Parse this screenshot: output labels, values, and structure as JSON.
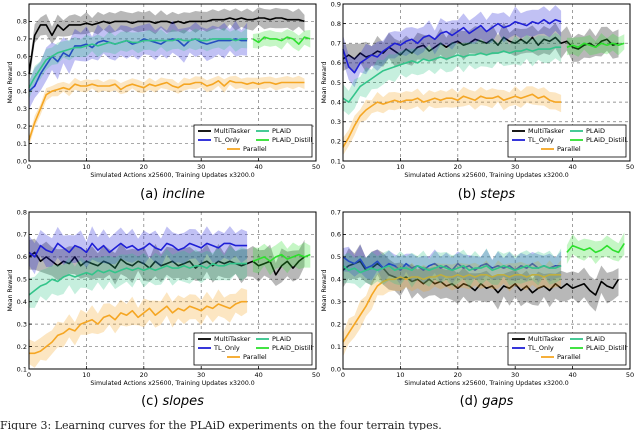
{
  "figure_caption": "Figure 3: Learning curves for the PLAiD experiments on the four terrain types.",
  "chart_data": [
    {
      "type": "line",
      "title": "",
      "caption_label": "(a)",
      "caption_name": "incline",
      "xlabel": "Simulated Actions x25600, Training Updates x3200.0",
      "ylabel": "Mean Reward",
      "xlim": [
        0,
        50
      ],
      "ylim": [
        0.0,
        0.9
      ],
      "xticks": [
        0,
        10,
        20,
        30,
        40,
        50
      ],
      "yticks": [
        0.0,
        0.1,
        0.2,
        0.3,
        0.4,
        0.5,
        0.6,
        0.7,
        0.8
      ],
      "grid": true,
      "legend_position": "bottom-right",
      "series": [
        {
          "name": "MultiTasker",
          "color": "#000000",
          "x_start": 0,
          "x_step": 1,
          "values": [
            0.5,
            0.72,
            0.78,
            0.78,
            0.72,
            0.78,
            0.75,
            0.78,
            0.78,
            0.78,
            0.79,
            0.78,
            0.79,
            0.8,
            0.79,
            0.8,
            0.8,
            0.8,
            0.79,
            0.8,
            0.8,
            0.8,
            0.79,
            0.8,
            0.8,
            0.79,
            0.8,
            0.79,
            0.8,
            0.8,
            0.8,
            0.8,
            0.81,
            0.81,
            0.81,
            0.82,
            0.81,
            0.82,
            0.81,
            0.81,
            0.82,
            0.82,
            0.81,
            0.82,
            0.82,
            0.81,
            0.81,
            0.81,
            0.8
          ],
          "spread": 0.05
        },
        {
          "name": "TL_Only",
          "color": "#1f1fd6",
          "x_start": 0,
          "x_step": 1,
          "values": [
            0.4,
            0.43,
            0.5,
            0.55,
            0.6,
            0.57,
            0.62,
            0.6,
            0.66,
            0.66,
            0.67,
            0.65,
            0.68,
            0.69,
            0.68,
            0.67,
            0.68,
            0.69,
            0.67,
            0.68,
            0.7,
            0.69,
            0.68,
            0.67,
            0.69,
            0.7,
            0.69,
            0.66,
            0.69,
            0.7,
            0.68,
            0.67,
            0.68,
            0.69,
            0.69,
            0.69,
            0.7,
            0.69,
            0.69
          ],
          "spread": 0.08
        },
        {
          "name": "Parallel",
          "color": "#f5a623",
          "x_start": 0,
          "x_step": 1,
          "values": [
            0.12,
            0.22,
            0.3,
            0.38,
            0.4,
            0.41,
            0.42,
            0.41,
            0.44,
            0.43,
            0.43,
            0.44,
            0.43,
            0.43,
            0.43,
            0.44,
            0.41,
            0.43,
            0.44,
            0.43,
            0.42,
            0.44,
            0.43,
            0.44,
            0.45,
            0.43,
            0.42,
            0.44,
            0.44,
            0.45,
            0.45,
            0.43,
            0.44,
            0.46,
            0.43,
            0.46,
            0.45,
            0.45,
            0.44,
            0.45,
            0.44,
            0.45,
            0.45,
            0.44,
            0.45,
            0.45,
            0.45,
            0.45,
            0.45
          ],
          "spread": 0.03
        },
        {
          "name": "PLAiD",
          "color": "#33c48a",
          "x_start": 0,
          "x_step": 1,
          "values": [
            0.42,
            0.48,
            0.53,
            0.58,
            0.6,
            0.62,
            0.63,
            0.64,
            0.65,
            0.65,
            0.66,
            0.67,
            0.66,
            0.67,
            0.68,
            0.67,
            0.68,
            0.69,
            0.68,
            0.68,
            0.69,
            0.69,
            0.69,
            0.69,
            0.69,
            0.69,
            0.7,
            0.69,
            0.69,
            0.7,
            0.69,
            0.69,
            0.7,
            0.7,
            0.7,
            0.7,
            0.69,
            0.7,
            0.7
          ],
          "spread": 0.05
        },
        {
          "name": "PLAiD_Distill",
          "color": "#2ee02e",
          "x_start": 39,
          "x_step": 1,
          "values": [
            0.7,
            0.68,
            0.71,
            0.7,
            0.7,
            0.69,
            0.71,
            0.7,
            0.67,
            0.71,
            0.7
          ],
          "spread": 0.04
        }
      ]
    },
    {
      "type": "line",
      "title": "",
      "caption_label": "(b)",
      "caption_name": "steps",
      "xlabel": "Simulated Actions x25600, Training Updates x3200.0",
      "ylabel": "Mean Reward",
      "xlim": [
        0,
        50
      ],
      "ylim": [
        0.1,
        0.9
      ],
      "xticks": [
        0,
        10,
        20,
        30,
        40,
        50
      ],
      "yticks": [
        0.1,
        0.2,
        0.3,
        0.4,
        0.5,
        0.6,
        0.7,
        0.8,
        0.9
      ],
      "grid": true,
      "legend_position": "bottom-right",
      "series": [
        {
          "name": "MultiTasker",
          "color": "#000000",
          "x_start": 0,
          "x_step": 1,
          "values": [
            0.62,
            0.64,
            0.62,
            0.65,
            0.63,
            0.64,
            0.66,
            0.65,
            0.68,
            0.66,
            0.64,
            0.67,
            0.65,
            0.68,
            0.69,
            0.66,
            0.68,
            0.7,
            0.68,
            0.7,
            0.71,
            0.69,
            0.7,
            0.72,
            0.71,
            0.7,
            0.72,
            0.69,
            0.73,
            0.71,
            0.7,
            0.72,
            0.7,
            0.73,
            0.69,
            0.72,
            0.71,
            0.73,
            0.7,
            0.71,
            0.68,
            0.67,
            0.69,
            0.7,
            0.68,
            0.71,
            0.72,
            0.69,
            0.7
          ],
          "spread": 0.06
        },
        {
          "name": "TL_Only",
          "color": "#1f1fd6",
          "x_start": 0,
          "x_step": 1,
          "values": [
            0.67,
            0.58,
            0.55,
            0.6,
            0.62,
            0.64,
            0.63,
            0.66,
            0.68,
            0.7,
            0.69,
            0.71,
            0.72,
            0.7,
            0.73,
            0.74,
            0.72,
            0.75,
            0.76,
            0.74,
            0.76,
            0.78,
            0.75,
            0.77,
            0.79,
            0.76,
            0.78,
            0.8,
            0.78,
            0.79,
            0.81,
            0.8,
            0.79,
            0.81,
            0.8,
            0.82,
            0.8,
            0.82,
            0.81
          ],
          "spread": 0.06
        },
        {
          "name": "Parallel",
          "color": "#f5a623",
          "x_start": 0,
          "x_step": 1,
          "values": [
            0.17,
            0.22,
            0.28,
            0.33,
            0.36,
            0.38,
            0.4,
            0.39,
            0.4,
            0.41,
            0.4,
            0.41,
            0.41,
            0.42,
            0.4,
            0.41,
            0.42,
            0.41,
            0.42,
            0.42,
            0.41,
            0.43,
            0.42,
            0.41,
            0.43,
            0.42,
            0.42,
            0.43,
            0.41,
            0.42,
            0.43,
            0.42,
            0.43,
            0.44,
            0.42,
            0.43,
            0.41,
            0.4,
            0.4
          ],
          "spread": 0.04
        },
        {
          "name": "PLAiD",
          "color": "#33c48a",
          "x_start": 0,
          "x_step": 1,
          "values": [
            0.42,
            0.4,
            0.44,
            0.48,
            0.5,
            0.52,
            0.54,
            0.56,
            0.57,
            0.58,
            0.59,
            0.6,
            0.61,
            0.6,
            0.62,
            0.61,
            0.62,
            0.63,
            0.62,
            0.63,
            0.64,
            0.63,
            0.64,
            0.64,
            0.65,
            0.64,
            0.65,
            0.65,
            0.66,
            0.65,
            0.66,
            0.66,
            0.67,
            0.66,
            0.67,
            0.67,
            0.67,
            0.68,
            0.68
          ],
          "spread": 0.06
        },
        {
          "name": "PLAiD_Distill",
          "color": "#2ee02e",
          "x_start": 39,
          "x_step": 1,
          "values": [
            0.68,
            0.69,
            0.68,
            0.7,
            0.69,
            0.68,
            0.7,
            0.69,
            0.7,
            0.69,
            0.7
          ],
          "spread": 0.04
        }
      ]
    },
    {
      "type": "line",
      "title": "",
      "caption_label": "(c)",
      "caption_name": "slopes",
      "xlabel": "Simulated Actions x25600, Training Updates x3200.0",
      "ylabel": "Mean Reward",
      "xlim": [
        0,
        50
      ],
      "ylim": [
        0.1,
        0.8
      ],
      "xticks": [
        0,
        10,
        20,
        30,
        40,
        50
      ],
      "yticks": [
        0.1,
        0.2,
        0.3,
        0.4,
        0.5,
        0.6,
        0.7,
        0.8
      ],
      "grid": true,
      "legend_position": "bottom-right",
      "series": [
        {
          "name": "MultiTasker",
          "color": "#000000",
          "x_start": 0,
          "x_step": 1,
          "values": [
            0.6,
            0.62,
            0.58,
            0.6,
            0.58,
            0.56,
            0.58,
            0.57,
            0.6,
            0.56,
            0.58,
            0.57,
            0.56,
            0.58,
            0.57,
            0.55,
            0.59,
            0.57,
            0.56,
            0.58,
            0.57,
            0.55,
            0.58,
            0.56,
            0.57,
            0.58,
            0.56,
            0.57,
            0.58,
            0.55,
            0.57,
            0.58,
            0.56,
            0.58,
            0.57,
            0.58,
            0.57,
            0.56,
            0.57,
            0.58,
            0.56,
            0.57,
            0.58,
            0.52,
            0.56,
            0.58,
            0.55,
            0.58,
            0.6
          ],
          "spread": 0.06
        },
        {
          "name": "TL_Only",
          "color": "#1f1fd6",
          "x_start": 0,
          "x_step": 1,
          "values": [
            0.62,
            0.6,
            0.65,
            0.63,
            0.62,
            0.66,
            0.64,
            0.62,
            0.65,
            0.64,
            0.62,
            0.66,
            0.63,
            0.65,
            0.62,
            0.64,
            0.66,
            0.64,
            0.65,
            0.63,
            0.64,
            0.66,
            0.64,
            0.63,
            0.66,
            0.65,
            0.63,
            0.64,
            0.66,
            0.65,
            0.64,
            0.66,
            0.65,
            0.64,
            0.66,
            0.66,
            0.65,
            0.65,
            0.65
          ],
          "spread": 0.06
        },
        {
          "name": "Parallel",
          "color": "#f5a623",
          "x_start": 0,
          "x_step": 1,
          "values": [
            0.17,
            0.17,
            0.18,
            0.2,
            0.22,
            0.25,
            0.26,
            0.28,
            0.27,
            0.3,
            0.31,
            0.32,
            0.3,
            0.33,
            0.34,
            0.32,
            0.35,
            0.34,
            0.36,
            0.33,
            0.35,
            0.37,
            0.34,
            0.36,
            0.38,
            0.35,
            0.37,
            0.36,
            0.38,
            0.37,
            0.36,
            0.38,
            0.37,
            0.39,
            0.38,
            0.37,
            0.39,
            0.4,
            0.4
          ],
          "spread": 0.05
        },
        {
          "name": "PLAiD",
          "color": "#33c48a",
          "x_start": 0,
          "x_step": 1,
          "values": [
            0.43,
            0.45,
            0.47,
            0.48,
            0.5,
            0.49,
            0.51,
            0.52,
            0.51,
            0.52,
            0.53,
            0.52,
            0.54,
            0.53,
            0.54,
            0.53,
            0.54,
            0.55,
            0.54,
            0.55,
            0.54,
            0.55,
            0.54,
            0.55,
            0.56,
            0.55,
            0.55,
            0.56,
            0.55,
            0.56,
            0.56,
            0.55,
            0.57,
            0.56,
            0.56,
            0.57,
            0.57,
            0.57,
            0.57
          ],
          "spread": 0.06
        },
        {
          "name": "PLAiD_Distill",
          "color": "#2ee02e",
          "x_start": 39,
          "x_step": 1,
          "values": [
            0.58,
            0.59,
            0.6,
            0.58,
            0.6,
            0.61,
            0.59,
            0.6,
            0.61,
            0.6,
            0.61
          ],
          "spread": 0.05
        }
      ]
    },
    {
      "type": "line",
      "title": "",
      "caption_label": "(d)",
      "caption_name": "gaps",
      "xlabel": "Simulated Actions x25600, Training Updates x3200.0",
      "ylabel": "Mean Reward",
      "xlim": [
        0,
        50
      ],
      "ylim": [
        0.0,
        0.7
      ],
      "xticks": [
        0,
        10,
        20,
        30,
        40,
        50
      ],
      "yticks": [
        0.0,
        0.1,
        0.2,
        0.3,
        0.4,
        0.5,
        0.6,
        0.7
      ],
      "grid": true,
      "legend_position": "bottom-right",
      "series": [
        {
          "name": "MultiTasker",
          "color": "#000000",
          "x_start": 0,
          "x_step": 1,
          "values": [
            0.44,
            0.46,
            0.47,
            0.48,
            0.44,
            0.45,
            0.47,
            0.45,
            0.42,
            0.41,
            0.4,
            0.41,
            0.39,
            0.4,
            0.38,
            0.4,
            0.38,
            0.39,
            0.37,
            0.38,
            0.36,
            0.38,
            0.37,
            0.35,
            0.38,
            0.36,
            0.37,
            0.34,
            0.37,
            0.36,
            0.38,
            0.35,
            0.37,
            0.34,
            0.36,
            0.37,
            0.35,
            0.38,
            0.36,
            0.38,
            0.36,
            0.37,
            0.38,
            0.35,
            0.33,
            0.39,
            0.37,
            0.36,
            0.4
          ],
          "spread": 0.06
        },
        {
          "name": "TL_Only",
          "color": "#1f1fd6",
          "x_start": 0,
          "x_step": 1,
          "values": [
            0.5,
            0.48,
            0.47,
            0.49,
            0.45,
            0.46,
            0.48,
            0.45,
            0.47,
            0.46,
            0.44,
            0.47,
            0.45,
            0.46,
            0.44,
            0.46,
            0.47,
            0.45,
            0.46,
            0.44,
            0.47,
            0.45,
            0.46,
            0.44,
            0.46,
            0.47,
            0.45,
            0.46,
            0.45,
            0.46,
            0.44,
            0.46,
            0.45,
            0.47,
            0.45,
            0.46,
            0.45,
            0.46,
            0.46
          ],
          "spread": 0.05
        },
        {
          "name": "Parallel",
          "color": "#f5a623",
          "x_start": 0,
          "x_step": 1,
          "values": [
            0.12,
            0.16,
            0.2,
            0.24,
            0.28,
            0.33,
            0.37,
            0.39,
            0.4,
            0.4,
            0.41,
            0.4,
            0.41,
            0.41,
            0.4,
            0.41,
            0.41,
            0.42,
            0.41,
            0.41,
            0.42,
            0.41,
            0.42,
            0.41,
            0.42,
            0.42,
            0.41,
            0.42,
            0.42,
            0.41,
            0.42,
            0.42,
            0.41,
            0.42,
            0.42,
            0.41,
            0.42,
            0.42,
            0.42
          ],
          "spread": 0.05
        },
        {
          "name": "PLAiD",
          "color": "#33c48a",
          "x_start": 0,
          "x_step": 1,
          "values": [
            0.46,
            0.44,
            0.45,
            0.43,
            0.44,
            0.45,
            0.44,
            0.45,
            0.46,
            0.44,
            0.45,
            0.45,
            0.44,
            0.46,
            0.45,
            0.44,
            0.45,
            0.46,
            0.45,
            0.44,
            0.45,
            0.46,
            0.44,
            0.45,
            0.45,
            0.46,
            0.44,
            0.45,
            0.46,
            0.45,
            0.44,
            0.45,
            0.46,
            0.45,
            0.45,
            0.46,
            0.45,
            0.45,
            0.46
          ],
          "spread": 0.06
        },
        {
          "name": "PLAiD_Distill",
          "color": "#2ee02e",
          "x_start": 39,
          "x_step": 1,
          "values": [
            0.52,
            0.55,
            0.54,
            0.53,
            0.54,
            0.52,
            0.53,
            0.55,
            0.53,
            0.52,
            0.56
          ],
          "spread": 0.04
        }
      ]
    }
  ]
}
